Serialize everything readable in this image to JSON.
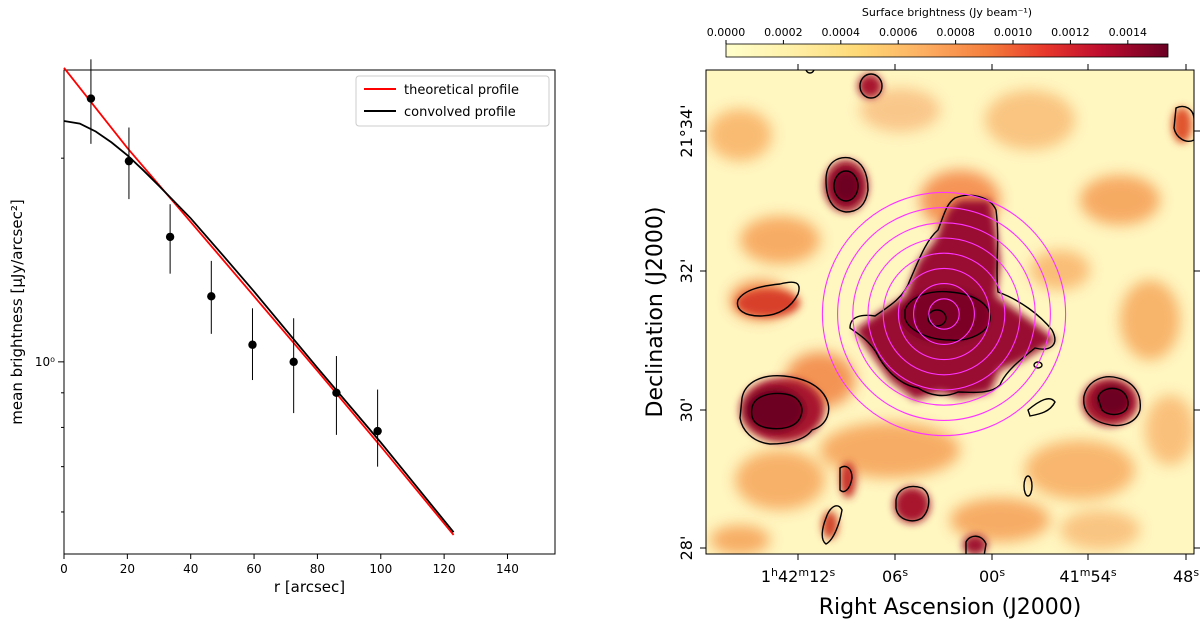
{
  "chart_data": [
    {
      "type": "scatter",
      "title": "",
      "xlabel": "r [arcsec]",
      "ylabel": "mean brightness [μJy/arcsec²]",
      "yscale": "log",
      "xlim": [
        0,
        155
      ],
      "ylim": [
        0.52,
        2.7
      ],
      "x_ticks": [
        "0",
        "20",
        "40",
        "60",
        "80",
        "100",
        "120",
        "140"
      ],
      "y_tick_label": "10⁰",
      "points": {
        "r": [
          8.5,
          20.5,
          33.5,
          46.5,
          59.5,
          72.5,
          86,
          99
        ],
        "brightness": [
          2.45,
          1.98,
          1.53,
          1.25,
          1.06,
          1.0,
          0.9,
          0.79
        ],
        "err_low": [
          0.35,
          0.24,
          0.18,
          0.15,
          0.12,
          0.16,
          0.12,
          0.09
        ],
        "err_high": [
          0.35,
          0.24,
          0.18,
          0.16,
          0.14,
          0.16,
          0.12,
          0.12
        ]
      },
      "series": [
        {
          "name": "theoretical profile",
          "color": "#ff0000",
          "x": [
            0,
            20,
            40,
            60,
            80,
            100,
            123
          ],
          "y": [
            2.72,
            2.07,
            1.61,
            1.25,
            0.97,
            0.75,
            0.555
          ]
        },
        {
          "name": "convolved profile",
          "color": "#000000",
          "x": [
            0,
            5,
            10,
            15,
            20,
            25,
            30,
            40,
            50,
            60,
            80,
            100,
            123
          ],
          "y": [
            2.27,
            2.25,
            2.19,
            2.11,
            2.02,
            1.92,
            1.82,
            1.63,
            1.44,
            1.27,
            0.98,
            0.76,
            0.56
          ]
        }
      ],
      "legend": [
        "theoretical profile",
        "convolved profile"
      ],
      "legend_position": "top-right"
    },
    {
      "type": "heatmap",
      "xlabel": "Right Ascension (J2000)",
      "ylabel": "Declination (J2000)",
      "colorbar_label": "Surface brightness (Jy beam⁻¹)",
      "colorbar_ticks": [
        "0.0000",
        "0.0002",
        "0.0004",
        "0.0006",
        "0.0008",
        "0.0010",
        "0.0012",
        "0.0014"
      ],
      "ra_ticks": [
        {
          "main": "1",
          "sup1": "h",
          "mid": "42",
          "sup2": "m",
          "end": "12",
          "sup3": "s"
        },
        {
          "main": "06",
          "sup3": "s"
        },
        {
          "main": "00",
          "sup3": "s"
        },
        {
          "main": "41",
          "sup2": "m",
          "end": "54",
          "sup3": "s"
        },
        {
          "main": "48",
          "sup3": "s"
        }
      ],
      "dec_ticks": [
        "21°34'",
        "32'",
        "30'",
        "28'"
      ],
      "circles": {
        "count": 8,
        "color": "#ff33ff"
      },
      "colors": {
        "low": "#fff8c8",
        "mid": "#f6a050",
        "high": "#7a0a2a"
      }
    }
  ]
}
